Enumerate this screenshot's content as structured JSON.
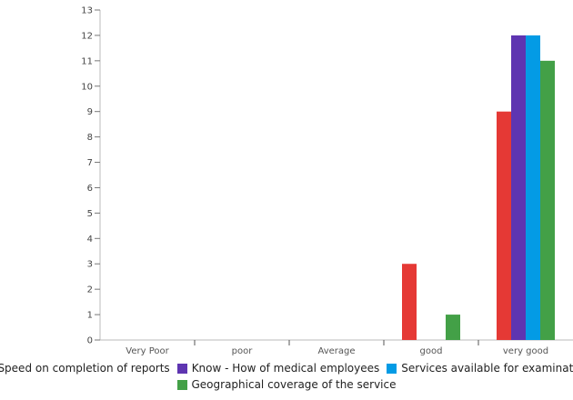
{
  "chart_data": {
    "type": "bar",
    "categories": [
      "Very Poor",
      "poor",
      "Average",
      "good",
      "very good"
    ],
    "series": [
      {
        "name": "Speed on completion of reports",
        "color": "#e53935",
        "values": [
          0,
          0,
          0,
          3,
          9
        ]
      },
      {
        "name": "Know - How of medical employees",
        "color": "#5e35b1",
        "values": [
          0,
          0,
          0,
          0,
          12
        ]
      },
      {
        "name": "Services available for examination",
        "color": "#039be5",
        "values": [
          0,
          0,
          0,
          0,
          12
        ]
      },
      {
        "name": "Geographical coverage of the service",
        "color": "#43a047",
        "values": [
          0,
          0,
          0,
          1,
          11
        ]
      }
    ],
    "ylim": [
      0,
      13
    ],
    "yticks": [
      0,
      1,
      2,
      3,
      4,
      5,
      6,
      7,
      8,
      9,
      10,
      11,
      12,
      13
    ],
    "grid": false,
    "legend_position": "bottom"
  }
}
